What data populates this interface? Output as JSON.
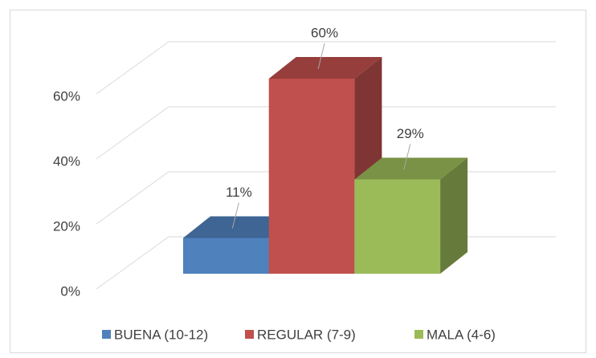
{
  "chart_data": {
    "type": "bar3d",
    "series": [
      {
        "name": "BUENA (10-12)",
        "color": "#4f81bd",
        "values": [
          11
        ],
        "value_labels": [
          "11%"
        ]
      },
      {
        "name": "REGULAR (7-9)",
        "color": "#c0504d",
        "values": [
          60
        ],
        "value_labels": [
          "60%"
        ]
      },
      {
        "name": "MALA (4-6)",
        "color": "#9bbb59",
        "values": [
          29
        ],
        "value_labels": [
          "29%"
        ]
      }
    ],
    "ylim": [
      0,
      60
    ],
    "yticks": [
      {
        "value": 0,
        "label": "0%"
      },
      {
        "value": 20,
        "label": "20%"
      },
      {
        "value": 40,
        "label": "40%"
      },
      {
        "value": 60,
        "label": "60%"
      }
    ],
    "grid": true,
    "legend": "bottom"
  }
}
